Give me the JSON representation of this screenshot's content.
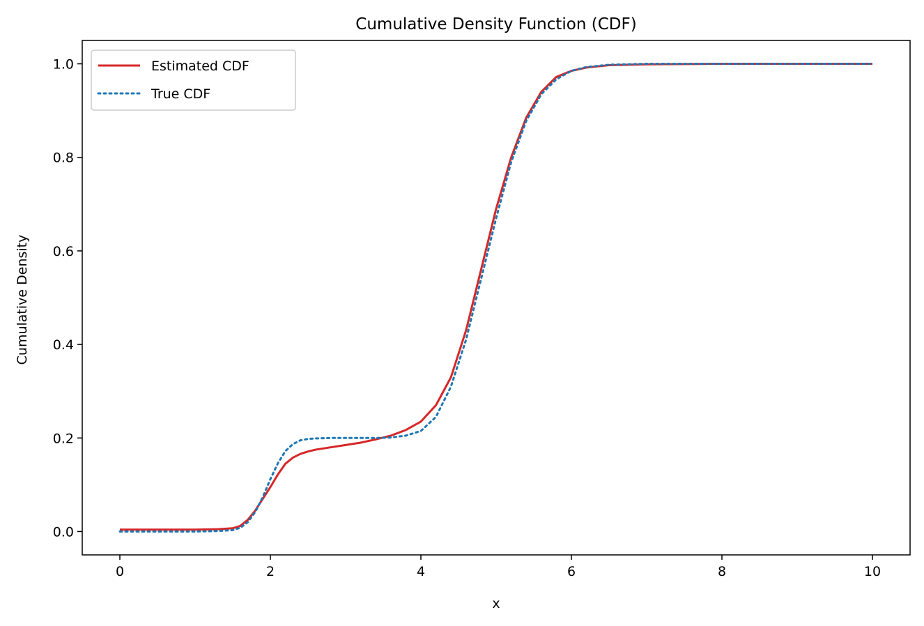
{
  "chart_data": {
    "type": "line",
    "title": "Cumulative Density Function (CDF)",
    "xlabel": "x",
    "ylabel": "Cumulative Density",
    "xlim": [
      -0.5,
      10.5
    ],
    "ylim": [
      -0.05,
      1.05
    ],
    "xticks": [
      0,
      2,
      4,
      6,
      8,
      10
    ],
    "yticks": [
      0.0,
      0.2,
      0.4,
      0.6,
      0.8,
      1.0
    ],
    "xtick_labels": [
      "0",
      "2",
      "4",
      "6",
      "8",
      "10"
    ],
    "ytick_labels": [
      "0.0",
      "0.2",
      "0.4",
      "0.6",
      "0.8",
      "1.0"
    ],
    "grid": false,
    "legend_position": "top-left",
    "series": [
      {
        "name": "Estimated CDF",
        "color": "#d62728",
        "style": "solid",
        "x": [
          0,
          0.5,
          1.0,
          1.3,
          1.5,
          1.6,
          1.7,
          1.8,
          1.9,
          2.0,
          2.1,
          2.2,
          2.3,
          2.4,
          2.5,
          2.6,
          2.8,
          3.0,
          3.2,
          3.4,
          3.6,
          3.8,
          4.0,
          4.2,
          4.4,
          4.6,
          4.8,
          5.0,
          5.2,
          5.4,
          5.6,
          5.8,
          6.0,
          6.2,
          6.5,
          7.0,
          8.0,
          9.0,
          10.0
        ],
        "y": [
          0.004,
          0.004,
          0.004,
          0.005,
          0.007,
          0.012,
          0.025,
          0.045,
          0.07,
          0.095,
          0.122,
          0.145,
          0.158,
          0.166,
          0.171,
          0.175,
          0.18,
          0.185,
          0.19,
          0.197,
          0.205,
          0.217,
          0.235,
          0.27,
          0.33,
          0.43,
          0.56,
          0.69,
          0.8,
          0.885,
          0.94,
          0.972,
          0.985,
          0.992,
          0.997,
          0.999,
          1.0,
          1.0,
          1.0
        ]
      },
      {
        "name": "True CDF",
        "color": "#1f77b4",
        "style": "dotted",
        "x": [
          0,
          0.5,
          1.0,
          1.3,
          1.5,
          1.6,
          1.7,
          1.8,
          1.9,
          2.0,
          2.1,
          2.2,
          2.3,
          2.4,
          2.5,
          2.6,
          2.8,
          3.0,
          3.2,
          3.4,
          3.6,
          3.8,
          4.0,
          4.2,
          4.4,
          4.6,
          4.8,
          5.0,
          5.2,
          5.4,
          5.6,
          5.8,
          6.0,
          6.2,
          6.5,
          7.0,
          8.0,
          9.0,
          10.0
        ],
        "y": [
          0.0,
          0.0,
          0.0,
          0.001,
          0.003,
          0.008,
          0.02,
          0.042,
          0.074,
          0.112,
          0.146,
          0.172,
          0.187,
          0.195,
          0.198,
          0.199,
          0.2,
          0.2,
          0.2,
          0.2,
          0.201,
          0.205,
          0.215,
          0.245,
          0.31,
          0.41,
          0.54,
          0.67,
          0.79,
          0.878,
          0.935,
          0.967,
          0.985,
          0.993,
          0.998,
          1.0,
          1.0,
          1.0,
          1.0
        ]
      }
    ]
  }
}
